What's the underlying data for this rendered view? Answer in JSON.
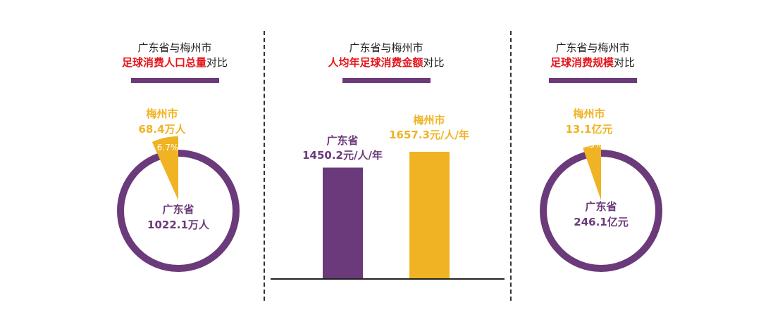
{
  "colors": {
    "primary": "#6b3a7a",
    "accent": "#f0b323",
    "highlight": "#e5151c",
    "text": "#222222"
  },
  "panels": [
    {
      "title_line1": "广东省与梅州市",
      "title_hl": "足球消费人口总量",
      "title_tail": "对比"
    },
    {
      "title_line1": "广东省与梅州市",
      "title_hl": "人均年足球消费金额",
      "title_tail": "对比"
    },
    {
      "title_line1": "广东省与梅州市",
      "title_hl": "足球消费规模",
      "title_tail": "对比"
    }
  ],
  "chart_data": [
    {
      "type": "pie",
      "slices": [
        {
          "name": "梅州市",
          "label": "梅州市",
          "value_text": "68.4万人",
          "pct_text": "6.7%",
          "percent": 6.7
        },
        {
          "name": "广东省",
          "label": "广东省",
          "value_text": "1022.1万人",
          "percent": 93.3
        }
      ]
    },
    {
      "type": "bar",
      "categories": [
        "广东省",
        "梅州市"
      ],
      "values": [
        1450.2,
        1657.3
      ],
      "value_texts": [
        "1450.2元/人/年",
        "1657.3元/人/年"
      ],
      "ylim": [
        0,
        2000
      ]
    },
    {
      "type": "pie",
      "slices": [
        {
          "name": "梅州市",
          "label": "梅州市",
          "value_text": "13.1亿元",
          "pct_text": "5.3%",
          "percent": 5.3
        },
        {
          "name": "广东省",
          "label": "广东省",
          "value_text": "246.1亿元",
          "percent": 94.7
        }
      ]
    }
  ]
}
